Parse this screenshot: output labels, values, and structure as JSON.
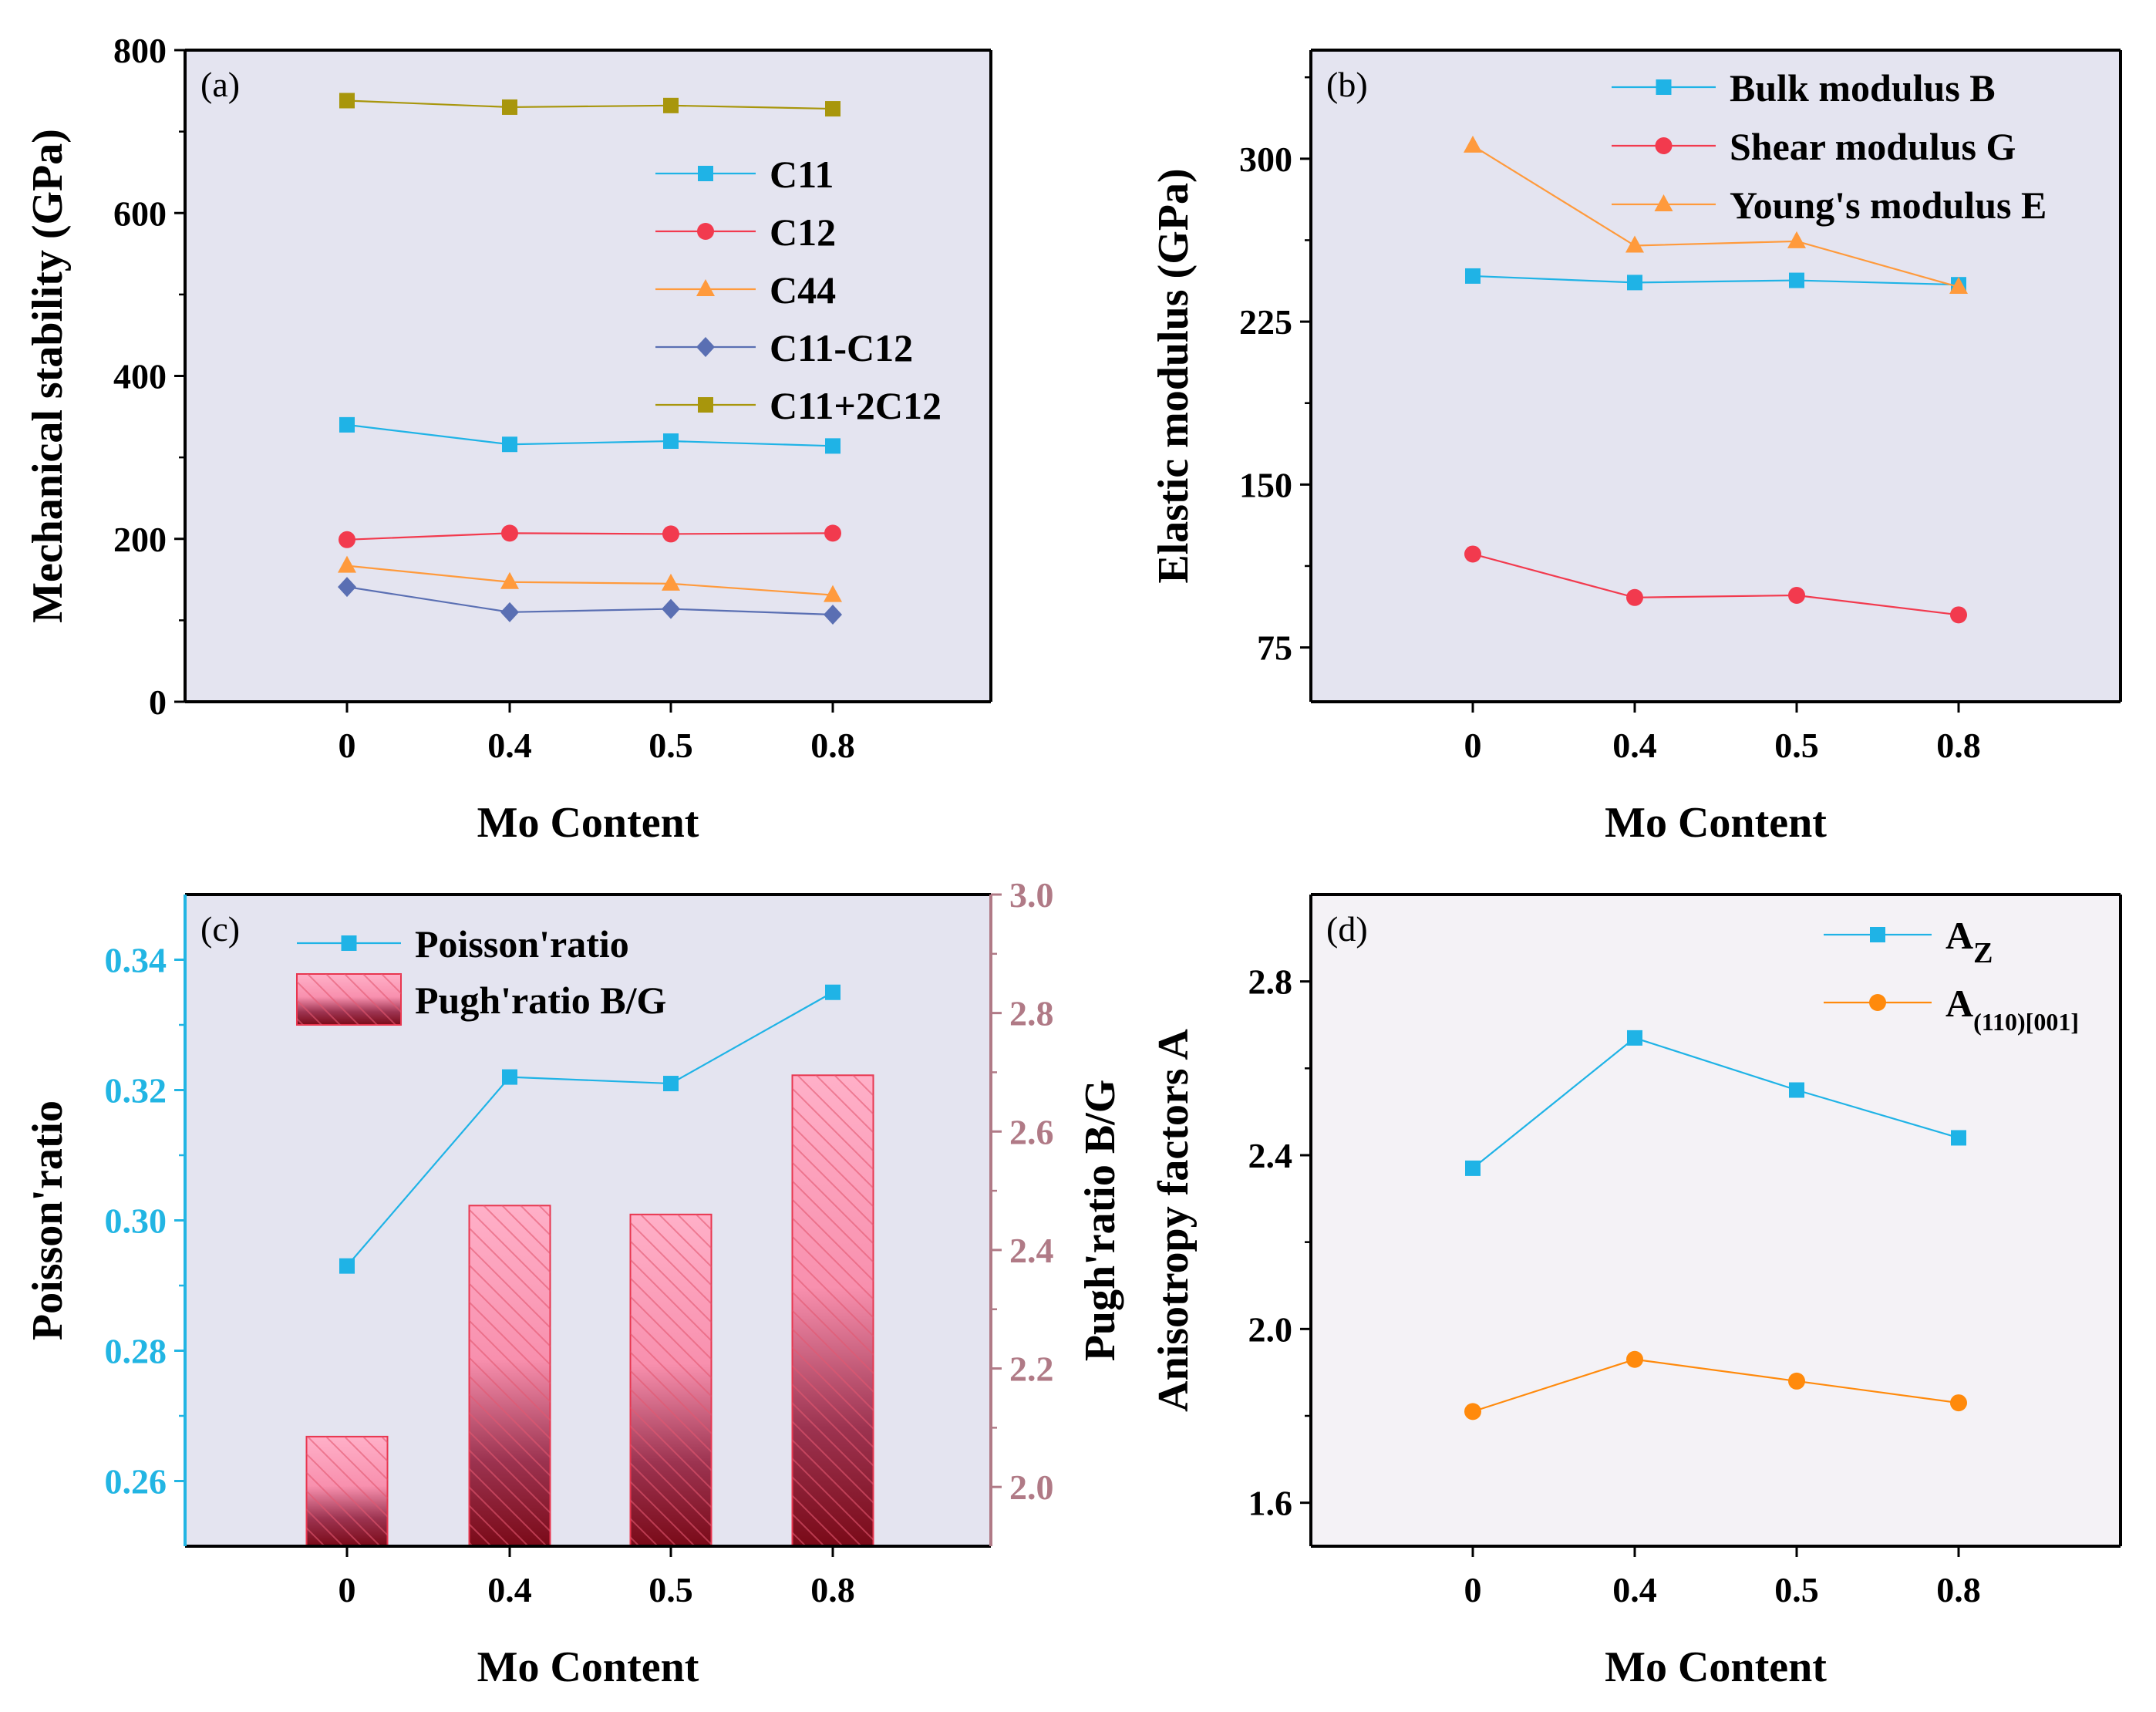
{
  "chart_data": [
    {
      "id": "a",
      "type": "line",
      "panel_label": "(a)",
      "xlabel": "Mo Content",
      "ylabel": "Mechanical stability (GPa)",
      "categories": [
        "0",
        "0.4",
        "0.5",
        "0.8"
      ],
      "ylim": [
        0,
        800
      ],
      "yticks": [
        "0",
        "200",
        "400",
        "600",
        "800"
      ],
      "legend_position": "right",
      "series": [
        {
          "name": "C11",
          "marker": "square",
          "color": "#1fb3e6",
          "values": [
            340,
            316,
            320,
            314
          ]
        },
        {
          "name": "C12",
          "marker": "circle",
          "color": "#f23a4e",
          "values": [
            199,
            207,
            206,
            207
          ]
        },
        {
          "name": "C44",
          "marker": "triangle",
          "color": "#ff9a3c",
          "values": [
            167,
            147,
            145,
            131
          ]
        },
        {
          "name": "C11-C12",
          "marker": "diamond",
          "color": "#5a6fb3",
          "values": [
            141,
            110,
            114,
            107
          ]
        },
        {
          "name": "C11+2C12",
          "marker": "square",
          "color": "#a8960c",
          "values": [
            738,
            730,
            732,
            728
          ]
        }
      ]
    },
    {
      "id": "b",
      "type": "line",
      "panel_label": "(b)",
      "xlabel": "Mo Content",
      "ylabel": "Elastic modulus (GPa)",
      "categories": [
        "0",
        "0.4",
        "0.5",
        "0.8"
      ],
      "ylim": [
        50,
        350
      ],
      "yticks": [
        "75",
        "150",
        "225",
        "300"
      ],
      "legend_position": "top-right",
      "series": [
        {
          "name": "Bulk modulus B",
          "marker": "square",
          "color": "#1fb3e6",
          "values": [
            246,
            243,
            244,
            242
          ]
        },
        {
          "name": "Shear modulus G",
          "marker": "circle",
          "color": "#f23a4e",
          "values": [
            118,
            98,
            99,
            90
          ]
        },
        {
          "name": "Young's modulus E",
          "marker": "triangle",
          "color": "#ff9a3c",
          "values": [
            306,
            260,
            262,
            241
          ]
        }
      ]
    },
    {
      "id": "c",
      "type": "bar",
      "panel_label": "(c)",
      "xlabel": "Mo Content",
      "ylabel": "Poisson'ratio",
      "y2label": "Pugh'ratio B/G",
      "categories": [
        "0",
        "0.4",
        "0.5",
        "0.8"
      ],
      "ylim": [
        0.25,
        0.35
      ],
      "yticks": [
        "0.26",
        "0.28",
        "0.30",
        "0.32",
        "0.34"
      ],
      "y2lim": [
        1.9,
        3.0
      ],
      "y2ticks": [
        "2.0",
        "2.2",
        "2.4",
        "2.6",
        "2.8",
        "3.0"
      ],
      "legend_position": "top-left",
      "series": [
        {
          "name": "Poisson'ratio",
          "kind": "line",
          "axis": "left",
          "marker": "square",
          "color": "#1fb3e6",
          "values": [
            0.293,
            0.322,
            0.321,
            0.335
          ]
        },
        {
          "name": "Pugh'ratio B/G",
          "kind": "bar",
          "axis": "right",
          "color": "#f36b8f",
          "values": [
            2.085,
            2.475,
            2.46,
            2.695
          ]
        }
      ]
    },
    {
      "id": "d",
      "type": "line",
      "panel_label": "(d)",
      "xlabel": "Mo Content",
      "ylabel": "Anisotropy factors A",
      "categories": [
        "0",
        "0.4",
        "0.5",
        "0.8"
      ],
      "ylim": [
        1.5,
        3.0
      ],
      "yticks": [
        "1.6",
        "2.0",
        "2.4",
        "2.8"
      ],
      "legend_position": "top-right",
      "series": [
        {
          "name": "A",
          "subscript": "Z",
          "marker": "square",
          "color": "#1fb3e6",
          "values": [
            2.37,
            2.67,
            2.55,
            2.44
          ]
        },
        {
          "name": "A",
          "subscript": "(110)[001]",
          "marker": "circle",
          "color": "#ff8a0c",
          "values": [
            1.81,
            1.93,
            1.88,
            1.83
          ]
        }
      ]
    }
  ]
}
